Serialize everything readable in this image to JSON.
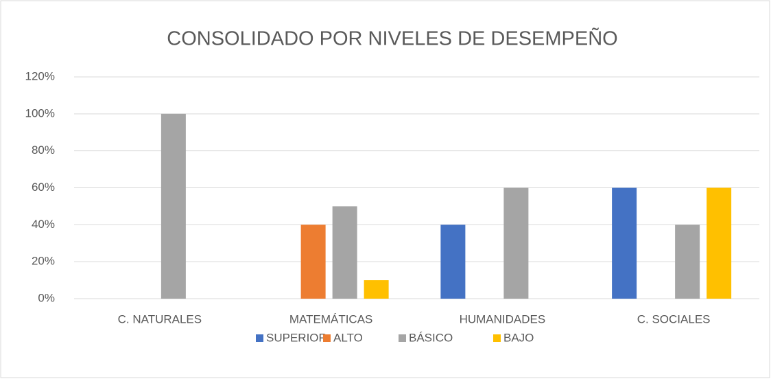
{
  "chart_data": {
    "type": "bar",
    "title": "CONSOLIDADO POR NIVELES DE DESEMPEÑO",
    "categories": [
      "C. NATURALES",
      "MATEMÁTICAS",
      "HUMANIDADES",
      "C. SOCIALES"
    ],
    "series": [
      {
        "name": "SUPERIOR",
        "color": "#4472c4",
        "values": [
          0,
          0,
          40,
          60
        ]
      },
      {
        "name": "ALTO",
        "color": "#ed7d31",
        "values": [
          0,
          40,
          0,
          0
        ]
      },
      {
        "name": "BÁSICO",
        "color": "#a5a5a5",
        "values": [
          100,
          50,
          60,
          40
        ]
      },
      {
        "name": "BAJO",
        "color": "#ffc000",
        "values": [
          0,
          10,
          0,
          60
        ]
      }
    ],
    "ylim": [
      0,
      120
    ],
    "yticks": [
      {
        "value": 0,
        "label": "0%"
      },
      {
        "value": 20,
        "label": "20%"
      },
      {
        "value": 40,
        "label": "40%"
      },
      {
        "value": 60,
        "label": "60%"
      },
      {
        "value": 80,
        "label": "80%"
      },
      {
        "value": 100,
        "label": "100%"
      },
      {
        "value": 120,
        "label": "120%"
      }
    ],
    "grid": true,
    "legend": "bottom"
  }
}
